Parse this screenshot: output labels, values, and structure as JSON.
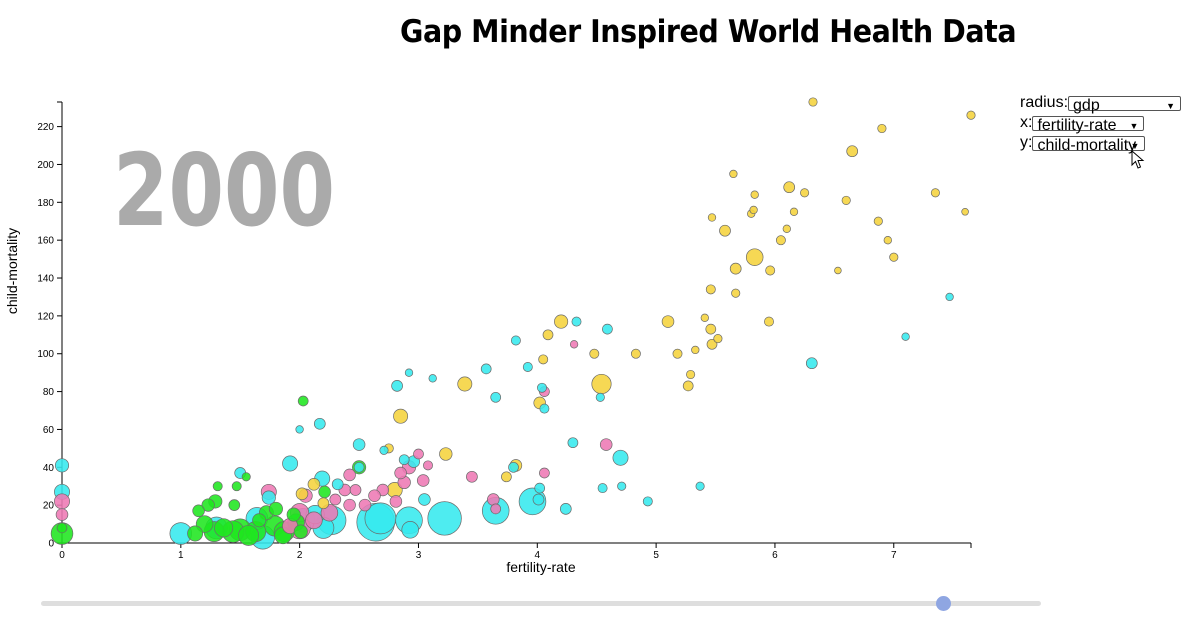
{
  "header": {
    "title": "Gap Minder Inspired World Health Data"
  },
  "controls": {
    "radius_label": "radius:",
    "radius_value": "gdp",
    "x_label": "x:",
    "x_value": "fertility-rate",
    "y_label": "y:",
    "y_value": "child-mortality"
  },
  "slider": {
    "year": 2000,
    "position": 0.902
  },
  "colors": {
    "region_a": "#f5d33c",
    "region_b": "#35e9ee",
    "region_c": "#ee79b4",
    "region_d": "#1fe61f",
    "year_text": "#aaaaaa",
    "slider_thumb": "#8fa6e2"
  },
  "chart_data": {
    "type": "scatter",
    "year_label": "2000",
    "xlabel": "fertility-rate",
    "ylabel": "child-mortality",
    "xlim": [
      0,
      7.65
    ],
    "ylim": [
      0,
      233
    ],
    "xticks": [
      0,
      1,
      2,
      3,
      4,
      5,
      6,
      7
    ],
    "yticks": [
      0,
      20,
      40,
      60,
      80,
      100,
      120,
      140,
      160,
      180,
      200,
      220
    ],
    "size_encoding": "gdp",
    "groups": [
      {
        "color": "#f5d33c",
        "points": [
          [
            6.32,
            233,
            1
          ],
          [
            7.65,
            226,
            1
          ],
          [
            6.9,
            219,
            1
          ],
          [
            6.65,
            207,
            1.3
          ],
          [
            5.65,
            195,
            0.9
          ],
          [
            6.12,
            188,
            1.3
          ],
          [
            6.25,
            185,
            1
          ],
          [
            7.35,
            185,
            1
          ],
          [
            5.83,
            184,
            0.9
          ],
          [
            6.6,
            181,
            1
          ],
          [
            5.47,
            172,
            0.9
          ],
          [
            5.8,
            174,
            0.9
          ],
          [
            6.16,
            175,
            0.9
          ],
          [
            5.82,
            176,
            0.9
          ],
          [
            7.6,
            175,
            0.8
          ],
          [
            6.87,
            170,
            1
          ],
          [
            6.1,
            166,
            0.9
          ],
          [
            5.58,
            165,
            1.3
          ],
          [
            6.05,
            160,
            1.1
          ],
          [
            6.95,
            160,
            0.9
          ],
          [
            5.83,
            151,
            2
          ],
          [
            7.0,
            151,
            1
          ],
          [
            5.67,
            145,
            1.3
          ],
          [
            5.96,
            144,
            1.1
          ],
          [
            6.53,
            144,
            0.8
          ],
          [
            5.46,
            134,
            1.1
          ],
          [
            5.67,
            132,
            1
          ],
          [
            5.41,
            119,
            0.9
          ],
          [
            5.95,
            117,
            1.1
          ],
          [
            5.1,
            117,
            1.4
          ],
          [
            5.46,
            113,
            1.2
          ],
          [
            5.52,
            108,
            1
          ],
          [
            5.47,
            105,
            1.2
          ],
          [
            5.33,
            102,
            0.9
          ],
          [
            5.18,
            100,
            1.1
          ],
          [
            4.83,
            100,
            1.1
          ],
          [
            4.48,
            100,
            1.1
          ],
          [
            5.29,
            89,
            1
          ],
          [
            5.27,
            83,
            1.2
          ],
          [
            4.54,
            84,
            2.3
          ],
          [
            4.05,
            97,
            1.1
          ],
          [
            4.09,
            110,
            1.2
          ],
          [
            4.2,
            117,
            1.6
          ],
          [
            3.39,
            84,
            1.7
          ],
          [
            4.02,
            74,
            1.4
          ],
          [
            2.85,
            67,
            1.7
          ],
          [
            3.23,
            47,
            1.5
          ],
          [
            2.75,
            50,
            1.1
          ],
          [
            2.8,
            28,
            1.8
          ],
          [
            2.2,
            21,
            1.3
          ],
          [
            2.12,
            31,
            1.4
          ],
          [
            3.82,
            41,
            1.4
          ],
          [
            2.02,
            26,
            1.4
          ],
          [
            3.74,
            35,
            1.2
          ]
        ]
      },
      {
        "color": "#35e9ee",
        "points": [
          [
            7.47,
            130,
            0.9
          ],
          [
            7.1,
            109,
            0.9
          ],
          [
            6.31,
            95,
            1.3
          ],
          [
            4.59,
            113,
            1.2
          ],
          [
            4.33,
            117,
            1.1
          ],
          [
            3.82,
            107,
            1.1
          ],
          [
            3.92,
            93,
            1.1
          ],
          [
            3.57,
            92,
            1.2
          ],
          [
            2.92,
            90,
            0.9
          ],
          [
            3.12,
            87,
            0.9
          ],
          [
            2.82,
            83,
            1.3
          ],
          [
            3.65,
            77,
            1.2
          ],
          [
            4.04,
            82,
            1.1
          ],
          [
            4.53,
            77,
            1
          ],
          [
            4.06,
            71,
            1.1
          ],
          [
            2.17,
            63,
            1.3
          ],
          [
            2.0,
            60,
            0.9
          ],
          [
            2.5,
            52,
            1.4
          ],
          [
            2.88,
            44,
            1.2
          ],
          [
            2.71,
            49,
            1
          ],
          [
            3.8,
            40,
            1.2
          ],
          [
            4.3,
            53,
            1.2
          ],
          [
            4.7,
            45,
            1.8
          ],
          [
            1.5,
            37,
            1.3
          ],
          [
            1.92,
            42,
            1.8
          ],
          [
            2.5,
            40,
            1.2
          ],
          [
            2.96,
            43,
            1.4
          ],
          [
            0,
            41,
            1.6
          ],
          [
            0,
            27,
            1.8
          ],
          [
            2.19,
            34,
            1.8
          ],
          [
            2.32,
            31,
            1.3
          ],
          [
            4.55,
            29,
            1.1
          ],
          [
            4.02,
            29,
            1.2
          ],
          [
            4.71,
            30,
            1
          ],
          [
            5.37,
            30,
            1
          ],
          [
            3.05,
            23,
            1.4
          ],
          [
            1.74,
            24,
            1.6
          ],
          [
            4.01,
            23,
            1.3
          ],
          [
            4.93,
            22,
            1.1
          ],
          [
            4.24,
            18,
            1.3
          ],
          [
            3.65,
            17,
            3.2
          ],
          [
            3.96,
            22,
            3.2
          ],
          [
            2.68,
            13,
            3.7
          ],
          [
            3.22,
            13,
            4
          ],
          [
            2.92,
            12,
            3.2
          ],
          [
            2.64,
            11,
            4.5
          ],
          [
            2.27,
            12,
            3.4
          ],
          [
            2.03,
            12,
            2.8
          ],
          [
            1.64,
            13,
            2.6
          ],
          [
            2.13,
            15,
            2.2
          ],
          [
            1.0,
            5,
            2.6
          ],
          [
            1.3,
            8,
            2.6
          ],
          [
            1.69,
            3,
            2.8
          ],
          [
            2.2,
            8,
            2.5
          ],
          [
            2.93,
            7,
            2
          ]
        ]
      },
      {
        "color": "#ee79b4",
        "points": [
          [
            4.31,
            105,
            0.9
          ],
          [
            4.06,
            80,
            1.2
          ],
          [
            4.06,
            37,
            1.2
          ],
          [
            4.58,
            52,
            1.4
          ],
          [
            3.45,
            35,
            1.3
          ],
          [
            3.63,
            23,
            1.4
          ],
          [
            3.65,
            18,
            1.2
          ],
          [
            3.0,
            47,
            1.2
          ],
          [
            2.92,
            40,
            1.6
          ],
          [
            3.08,
            41,
            1.1
          ],
          [
            2.85,
            37,
            1.4
          ],
          [
            3.04,
            33,
            1.4
          ],
          [
            2.88,
            32,
            1.5
          ],
          [
            2.7,
            28,
            1.4
          ],
          [
            2.81,
            22,
            1.4
          ],
          [
            2.63,
            25,
            1.4
          ],
          [
            2.55,
            20,
            1.4
          ],
          [
            2.42,
            20,
            1.4
          ],
          [
            2.3,
            23,
            1.3
          ],
          [
            2.38,
            28,
            1.4
          ],
          [
            2.42,
            36,
            1.4
          ],
          [
            2.47,
            28,
            1.3
          ],
          [
            1.74,
            27,
            1.8
          ],
          [
            2.05,
            25,
            1.6
          ],
          [
            0,
            22,
            1.8
          ],
          [
            0,
            15,
            1.4
          ],
          [
            2.0,
            16,
            2.2
          ],
          [
            2.12,
            12,
            2
          ],
          [
            2.0,
            8,
            2.6
          ],
          [
            2.25,
            16,
            2
          ],
          [
            1.92,
            9,
            1.8
          ]
        ]
      },
      {
        "color": "#1fe61f",
        "points": [
          [
            2.03,
            75,
            1.2
          ],
          [
            2.5,
            40,
            1.6
          ],
          [
            1.55,
            35,
            1
          ],
          [
            1.31,
            30,
            1.1
          ],
          [
            1.47,
            30,
            1.1
          ],
          [
            2.21,
            27,
            1.4
          ],
          [
            1.29,
            22,
            1.6
          ],
          [
            1.15,
            17,
            1.4
          ],
          [
            1.23,
            20,
            1.5
          ],
          [
            1.45,
            20,
            1.3
          ],
          [
            1.72,
            16,
            1.7
          ],
          [
            1.8,
            18,
            1.6
          ],
          [
            1.95,
            15,
            1.6
          ],
          [
            1.66,
            12,
            1.6
          ],
          [
            1.2,
            10,
            2
          ],
          [
            1.36,
            8,
            2.2
          ],
          [
            1.5,
            7,
            2.6
          ],
          [
            1.79,
            9,
            2.4
          ],
          [
            1.87,
            6,
            2.4
          ],
          [
            1.28,
            6,
            2.4
          ],
          [
            1.44,
            6,
            2.6
          ],
          [
            1.63,
            6,
            2.4
          ],
          [
            1.97,
            11,
            2
          ],
          [
            2.01,
            6,
            1.6
          ],
          [
            1.12,
            5,
            1.8
          ],
          [
            1.57,
            4,
            2.4
          ],
          [
            0,
            5,
            2.6
          ],
          [
            0,
            8,
            1.2
          ],
          [
            1.86,
            4,
            2
          ]
        ]
      }
    ]
  }
}
